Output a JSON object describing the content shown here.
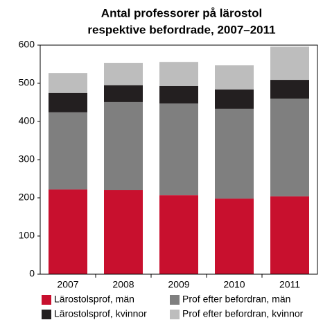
{
  "chart_data": {
    "type": "stacked_bar",
    "title": "Antal professorer på lärostol",
    "subtitle": "respektive befordrade, 2007–2011",
    "categories": [
      "2007",
      "2008",
      "2009",
      "2010",
      "2011"
    ],
    "series": [
      {
        "name": "Lärostolsprof, män",
        "color": "#c8102e",
        "values": [
          222,
          220,
          207,
          198,
          204
        ]
      },
      {
        "name": "Prof efter befordran, män",
        "color": "#7f7f7f",
        "values": [
          202,
          231,
          240,
          235,
          256
        ]
      },
      {
        "name": "Lärostolsprof, kvinnor",
        "color": "#231f20",
        "values": [
          51,
          44,
          46,
          51,
          49
        ]
      },
      {
        "name": "Prof efter befordran, kvinnor",
        "color": "#bdbdbd",
        "values": [
          52,
          58,
          63,
          63,
          87
        ]
      }
    ],
    "ylim": [
      0,
      600
    ],
    "yticks": [
      0,
      100,
      200,
      300,
      400,
      500,
      600
    ]
  }
}
